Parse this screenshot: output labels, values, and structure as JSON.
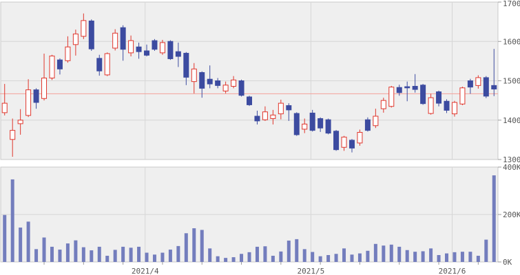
{
  "chart_data": {
    "type": "candlestick_with_volume",
    "title": "",
    "description": "Daily stock price candlestick chart (red hollow = up, blue filled = down) with volume bars below",
    "x_axis": {
      "labels": [
        {
          "text": "2021/4",
          "line_index": 18.3
        },
        {
          "text": "2021/5",
          "line_index": 39.3
        },
        {
          "text": "2021/6",
          "line_index": 57.2
        }
      ],
      "week_tick_indices": [
        5,
        10,
        15,
        20,
        25,
        30,
        35,
        40,
        45,
        50,
        55,
        60
      ]
    },
    "price_axis": {
      "min": 1300,
      "max": 1700,
      "ticks": [
        1700,
        1600,
        1500,
        1400,
        1300
      ],
      "interior_gridlines": [
        1600,
        1500,
        1400
      ]
    },
    "volume_axis": {
      "min_k": 0,
      "max_k": 400,
      "ticks": [
        {
          "value_k": 400,
          "label": "400K"
        },
        {
          "value_k": 200,
          "label": "200K"
        },
        {
          "value_k": 0,
          "label": "0K"
        }
      ],
      "interior_gridlines_k": [
        200
      ]
    },
    "reference_line": {
      "price": 1467
    },
    "colors": {
      "up": "#e0352b",
      "up_fill": "#ffffff",
      "down": "#3c4ba0",
      "volume_bar": "#737dbd",
      "reference_line": "#f59f98",
      "grid": "#d6d6d6",
      "border": "#c9c9c9",
      "plot_bg": "#efefef",
      "axis_text": "#555555",
      "tick": "#999999"
    },
    "candles_ohlc": [
      [
        1419,
        1492,
        1412,
        1443
      ],
      [
        1351,
        1404,
        1307,
        1374
      ],
      [
        1391,
        1428,
        1363,
        1400
      ],
      [
        1412,
        1504,
        1408,
        1477
      ],
      [
        1477,
        1481,
        1429,
        1445
      ],
      [
        1455,
        1569,
        1450,
        1507
      ],
      [
        1507,
        1566,
        1502,
        1563
      ],
      [
        1553,
        1557,
        1516,
        1530
      ],
      [
        1551,
        1613,
        1546,
        1586
      ],
      [
        1592,
        1630,
        1564,
        1619
      ],
      [
        1613,
        1671,
        1606,
        1653
      ],
      [
        1652,
        1656,
        1576,
        1581
      ],
      [
        1557,
        1566,
        1513,
        1525
      ],
      [
        1515,
        1572,
        1512,
        1569
      ],
      [
        1583,
        1631,
        1577,
        1621
      ],
      [
        1635,
        1641,
        1551,
        1580
      ],
      [
        1571,
        1615,
        1562,
        1602
      ],
      [
        1586,
        1597,
        1556,
        1574
      ],
      [
        1576,
        1592,
        1562,
        1565
      ],
      [
        1602,
        1606,
        1576,
        1580
      ],
      [
        1571,
        1604,
        1566,
        1597
      ],
      [
        1600,
        1603,
        1553,
        1556
      ],
      [
        1574,
        1597,
        1535,
        1562
      ],
      [
        1570,
        1573,
        1489,
        1509
      ],
      [
        1498,
        1545,
        1468,
        1530
      ],
      [
        1521,
        1524,
        1457,
        1481
      ],
      [
        1504,
        1539,
        1481,
        1492
      ],
      [
        1500,
        1507,
        1481,
        1488
      ],
      [
        1474,
        1498,
        1468,
        1489
      ],
      [
        1486,
        1512,
        1481,
        1502
      ],
      [
        1500,
        1503,
        1460,
        1463
      ],
      [
        1459,
        1462,
        1436,
        1439
      ],
      [
        1410,
        1424,
        1389,
        1398
      ],
      [
        1401,
        1435,
        1398,
        1421
      ],
      [
        1404,
        1426,
        1389,
        1413
      ],
      [
        1416,
        1452,
        1402,
        1443
      ],
      [
        1437,
        1443,
        1398,
        1426
      ],
      [
        1417,
        1420,
        1360,
        1363
      ],
      [
        1377,
        1404,
        1367,
        1390
      ],
      [
        1418,
        1426,
        1371,
        1374
      ],
      [
        1404,
        1407,
        1370,
        1380
      ],
      [
        1401,
        1404,
        1364,
        1367
      ],
      [
        1372,
        1375,
        1322,
        1325
      ],
      [
        1331,
        1360,
        1322,
        1357
      ],
      [
        1349,
        1352,
        1318,
        1329
      ],
      [
        1342,
        1376,
        1335,
        1369
      ],
      [
        1401,
        1407,
        1371,
        1374
      ],
      [
        1386,
        1429,
        1380,
        1410
      ],
      [
        1429,
        1457,
        1419,
        1450
      ],
      [
        1435,
        1487,
        1432,
        1484
      ],
      [
        1483,
        1490,
        1462,
        1470
      ],
      [
        1485,
        1498,
        1448,
        1482
      ],
      [
        1486,
        1517,
        1470,
        1478
      ],
      [
        1489,
        1492,
        1439,
        1442
      ],
      [
        1417,
        1467,
        1414,
        1457
      ],
      [
        1472,
        1475,
        1435,
        1443
      ],
      [
        1448,
        1453,
        1418,
        1425
      ],
      [
        1416,
        1449,
        1409,
        1445
      ],
      [
        1441,
        1485,
        1438,
        1482
      ],
      [
        1500,
        1505,
        1467,
        1484
      ],
      [
        1488,
        1514,
        1480,
        1508
      ],
      [
        1508,
        1512,
        1456,
        1461
      ],
      [
        1488,
        1581,
        1461,
        1479
      ]
    ],
    "volumes_k": [
      198,
      348,
      145,
      170,
      54,
      103,
      64,
      52,
      78,
      91,
      62,
      49,
      64,
      26,
      51,
      64,
      60,
      64,
      39,
      31,
      39,
      52,
      67,
      121,
      142,
      135,
      57,
      24,
      17,
      20,
      34,
      41,
      64,
      66,
      26,
      44,
      90,
      96,
      54,
      42,
      24,
      29,
      34,
      57,
      31,
      36,
      47,
      76,
      69,
      73,
      64,
      50,
      43,
      45,
      57,
      29,
      36,
      41,
      43,
      43,
      26,
      94,
      365
    ]
  }
}
